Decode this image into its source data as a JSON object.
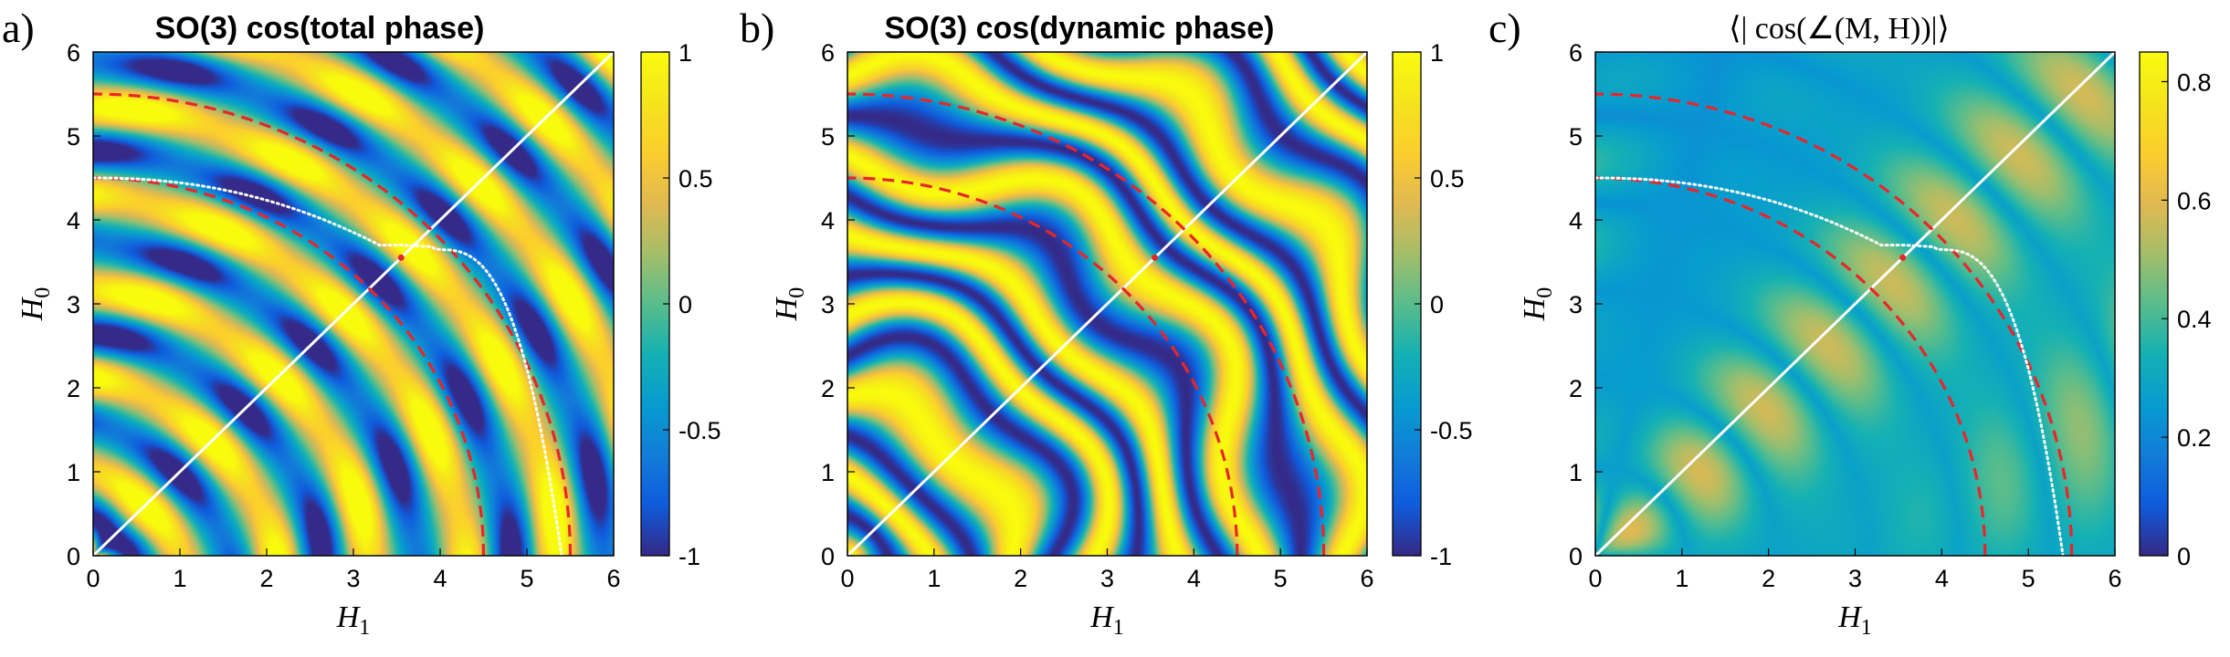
{
  "figure": {
    "labels": [
      "a)",
      "b)",
      "c)"
    ]
  },
  "chart_data": [
    {
      "type": "heatmap",
      "panel_label": "a)",
      "title": "SO(3) cos(total phase)",
      "xlabel": "H",
      "xlabel_sub": "1",
      "ylabel": "H",
      "ylabel_sub": "0",
      "xlim": [
        0,
        6
      ],
      "ylim": [
        0,
        6
      ],
      "x_ticks": [
        "0",
        "1",
        "2",
        "3",
        "4",
        "5",
        "6"
      ],
      "y_ticks": [
        "0",
        "1",
        "2",
        "3",
        "4",
        "5",
        "6"
      ],
      "colorbar": {
        "range": [
          -1,
          1
        ],
        "ticks": [
          -1,
          -0.5,
          0,
          0.5,
          1
        ],
        "tick_labels": [
          "-1",
          "-0.5",
          "0",
          "0.5",
          "1"
        ]
      },
      "overlays": {
        "diagonal": true,
        "red_dashed_radii": [
          4.5,
          5.5
        ],
        "white_dotted": "crossover boundary",
        "highlight_point": [
          3.55,
          3.55
        ]
      },
      "field": "total"
    },
    {
      "type": "heatmap",
      "panel_label": "b)",
      "title": "SO(3) cos(dynamic phase)",
      "xlabel": "H",
      "xlabel_sub": "1",
      "ylabel": "H",
      "ylabel_sub": "0",
      "xlim": [
        0,
        6
      ],
      "ylim": [
        0,
        6
      ],
      "x_ticks": [
        "0",
        "1",
        "2",
        "3",
        "4",
        "5",
        "6"
      ],
      "y_ticks": [
        "0",
        "1",
        "2",
        "3",
        "4",
        "5",
        "6"
      ],
      "colorbar": {
        "range": [
          -1,
          1
        ],
        "ticks": [
          -1,
          -0.5,
          0,
          0.5,
          1
        ],
        "tick_labels": [
          "-1",
          "-0.5",
          "0",
          "0.5",
          "1"
        ]
      },
      "overlays": {
        "diagonal": true,
        "red_dashed_radii": [
          4.5,
          5.5
        ],
        "white_dotted": "none",
        "highlight_point": [
          3.55,
          3.55
        ]
      },
      "field": "dynamic"
    },
    {
      "type": "heatmap",
      "panel_label": "c)",
      "title": "⟨| cos(∠(M, H))|⟩",
      "xlabel": "H",
      "xlabel_sub": "1",
      "ylabel": "H",
      "ylabel_sub": "0",
      "xlim": [
        0,
        6
      ],
      "ylim": [
        0,
        6
      ],
      "x_ticks": [
        "0",
        "1",
        "2",
        "3",
        "4",
        "5",
        "6"
      ],
      "y_ticks": [
        "0",
        "1",
        "2",
        "3",
        "4",
        "5",
        "6"
      ],
      "colorbar": {
        "range": [
          0,
          0.85
        ],
        "ticks": [
          0,
          0.2,
          0.4,
          0.6,
          0.8
        ],
        "tick_labels": [
          "0",
          "0.2",
          "0.4",
          "0.6",
          "0.8"
        ]
      },
      "overlays": {
        "diagonal": true,
        "red_dashed_radii": [
          4.5,
          5.5
        ],
        "white_dotted": "crossover boundary",
        "highlight_point": [
          3.55,
          3.55
        ]
      },
      "field": "magnetization"
    }
  ]
}
